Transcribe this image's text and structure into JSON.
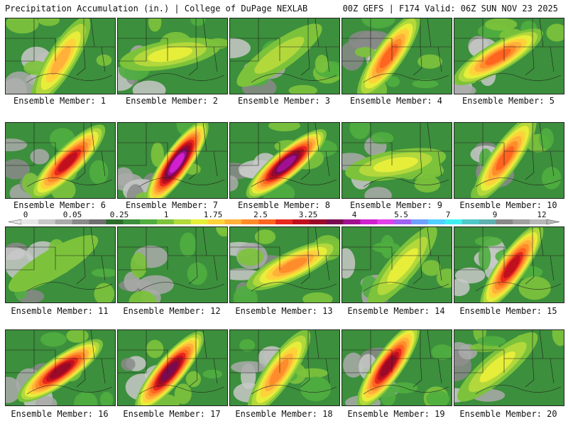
{
  "header": {
    "title_left": "Precipitation Accumulation (in.) | College of DuPage NEXLAB",
    "title_right": "00Z GEFS | F174 Valid: 06Z SUN NOV 23 2025"
  },
  "panels": [
    {
      "label": "Ensemble Member: 1",
      "max_band": 12,
      "axis_angle": -58
    },
    {
      "label": "Ensemble Member: 2",
      "max_band": 10,
      "axis_angle": -10
    },
    {
      "label": "Ensemble Member: 3",
      "max_band": 9,
      "axis_angle": -35
    },
    {
      "label": "Ensemble Member: 4",
      "max_band": 14,
      "axis_angle": -55
    },
    {
      "label": "Ensemble Member: 5",
      "max_band": 14,
      "axis_angle": -30
    },
    {
      "label": "Ensemble Member: 6",
      "max_band": 16,
      "axis_angle": -45
    },
    {
      "label": "Ensemble Member: 7",
      "max_band": 20,
      "axis_angle": -55
    },
    {
      "label": "Ensemble Member: 8",
      "max_band": 19,
      "axis_angle": -40
    },
    {
      "label": "Ensemble Member: 9",
      "max_band": 10,
      "axis_angle": -10
    },
    {
      "label": "Ensemble Member: 10",
      "max_band": 14,
      "axis_angle": -55
    },
    {
      "label": "Ensemble Member: 11",
      "max_band": 8,
      "axis_angle": -30
    },
    {
      "label": "Ensemble Member: 12",
      "max_band": 7,
      "axis_angle": -20
    },
    {
      "label": "Ensemble Member: 13",
      "max_band": 13,
      "axis_angle": -25
    },
    {
      "label": "Ensemble Member: 14",
      "max_band": 10,
      "axis_angle": -50
    },
    {
      "label": "Ensemble Member: 15",
      "max_band": 16,
      "axis_angle": -55
    },
    {
      "label": "Ensemble Member: 16",
      "max_band": 17,
      "axis_angle": -35
    },
    {
      "label": "Ensemble Member: 17",
      "max_band": 18,
      "axis_angle": -50
    },
    {
      "label": "Ensemble Member: 18",
      "max_band": 13,
      "axis_angle": -55
    },
    {
      "label": "Ensemble Member: 19",
      "max_band": 17,
      "axis_angle": -55
    },
    {
      "label": "Ensemble Member: 20",
      "max_band": 10,
      "axis_angle": -40
    }
  ],
  "colorbar": {
    "labels": [
      "0",
      "0.05",
      "0.25",
      "1",
      "1.75",
      "2.5",
      "3.25",
      "4",
      "5.5",
      "7",
      "9",
      "12"
    ],
    "colors": [
      "#e6e6e6",
      "#c8c8c8",
      "#aaaaaa",
      "#8a8a8a",
      "#6f6f6f",
      "#2a6e2a",
      "#3c8f3c",
      "#4fae3f",
      "#7cc33b",
      "#b2d83c",
      "#e6ee3a",
      "#ffd23a",
      "#ffb13a",
      "#ff8c2a",
      "#ff6420",
      "#e8281e",
      "#c0101e",
      "#9a0a28",
      "#7a0a50",
      "#a01090",
      "#d020d0",
      "#e040e8",
      "#a060f0",
      "#6ea0ff",
      "#50d0ff",
      "#40f0f0",
      "#50c8c8",
      "#60b0b0",
      "#888888",
      "#a0a0a0",
      "#b8b8b8"
    ]
  }
}
